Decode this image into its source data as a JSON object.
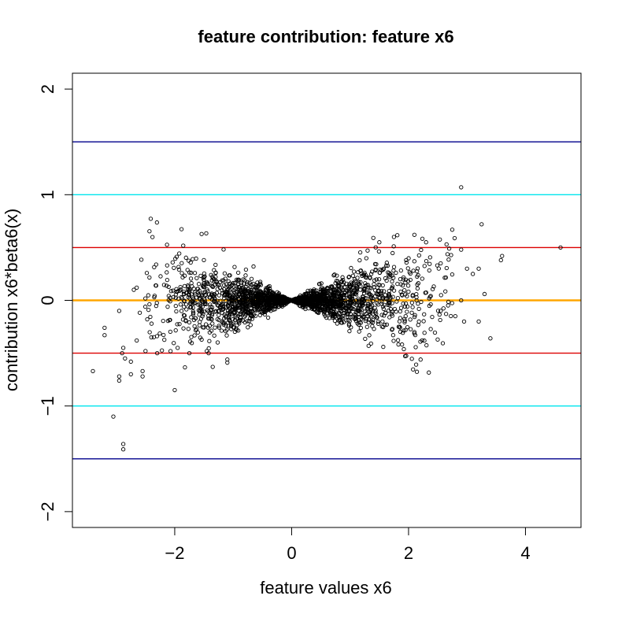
{
  "chart_data": {
    "type": "scatter",
    "title": "feature contribution: feature x6",
    "xlabel": "feature values x6",
    "ylabel": "contribution  x6*beta6(x)",
    "xlim": [
      -3.75,
      4.95
    ],
    "ylim": [
      -2.15,
      2.15
    ],
    "x_ticks": [
      -2,
      0,
      2,
      4
    ],
    "x_tick_labels": [
      "−2",
      "0",
      "2",
      "4"
    ],
    "y_ticks": [
      -2,
      -1,
      0,
      1,
      2
    ],
    "y_tick_labels": [
      "−2",
      "−1",
      "0",
      "1",
      "2"
    ],
    "grid": false,
    "legend": "none",
    "reference_lines": [
      {
        "y": 1.5,
        "color": "#00008b"
      },
      {
        "y": 1.0,
        "color": "#00e5ee"
      },
      {
        "y": 0.5,
        "color": "#dd0000"
      },
      {
        "y": 0.0,
        "color": "#ffa500"
      },
      {
        "y": -0.5,
        "color": "#dd0000"
      },
      {
        "y": -1.0,
        "color": "#00e5ee"
      },
      {
        "y": -1.5,
        "color": "#00008b"
      }
    ],
    "points": [
      [
        2.9,
        1.07
      ],
      [
        4.6,
        0.5
      ],
      [
        3.25,
        0.72
      ],
      [
        3.6,
        0.42
      ],
      [
        3.58,
        0.38
      ],
      [
        2.9,
        0.48
      ],
      [
        3.0,
        0.3
      ],
      [
        3.1,
        0.25
      ],
      [
        3.2,
        0.3
      ],
      [
        3.3,
        0.06
      ],
      [
        2.8,
        -0.15
      ],
      [
        2.95,
        -0.2
      ],
      [
        3.2,
        -0.2
      ],
      [
        3.4,
        -0.36
      ],
      [
        2.9,
        0.0
      ],
      [
        2.1,
        0.62
      ],
      [
        1.75,
        0.6
      ],
      [
        2.3,
        0.55
      ],
      [
        2.65,
        0.53
      ],
      [
        2.55,
        0.35
      ],
      [
        1.95,
        -0.28
      ],
      [
        2.1,
        -0.3
      ],
      [
        1.95,
        -0.15
      ],
      [
        2.55,
        -0.1
      ],
      [
        1.5,
        0.55
      ],
      [
        -3.4,
        -0.67
      ],
      [
        -3.05,
        -1.1
      ],
      [
        -2.88,
        -1.36
      ],
      [
        -2.88,
        -1.41
      ],
      [
        -2.95,
        -0.72
      ],
      [
        -2.95,
        -0.76
      ],
      [
        -2.85,
        -0.55
      ],
      [
        -2.9,
        -0.5
      ],
      [
        -2.88,
        -0.45
      ],
      [
        -2.75,
        -0.7
      ],
      [
        -2.55,
        -0.72
      ],
      [
        -2.55,
        -0.67
      ],
      [
        -3.2,
        -0.26
      ],
      [
        -3.2,
        -0.33
      ],
      [
        -2.95,
        -0.1
      ],
      [
        -2.65,
        -0.38
      ],
      [
        -2.7,
        0.1
      ],
      [
        -2.65,
        0.12
      ],
      [
        -2.0,
        -0.85
      ],
      [
        -2.75,
        -0.58
      ],
      [
        -2.5,
        -0.48
      ],
      [
        -2.3,
        -0.5
      ],
      [
        -2.4,
        -0.35
      ],
      [
        -1.95,
        -0.45
      ],
      [
        -1.75,
        -0.5
      ],
      [
        -1.45,
        -0.48
      ],
      [
        -1.42,
        -0.5
      ],
      [
        -1.1,
        -0.56
      ],
      [
        -1.1,
        -0.59
      ],
      [
        -1.35,
        -0.63
      ]
    ],
    "cloud": {
      "n": 2400,
      "x_mean": 0.0,
      "x_sd": 1.15,
      "y_spread_per_unit_x": 0.13
    }
  }
}
